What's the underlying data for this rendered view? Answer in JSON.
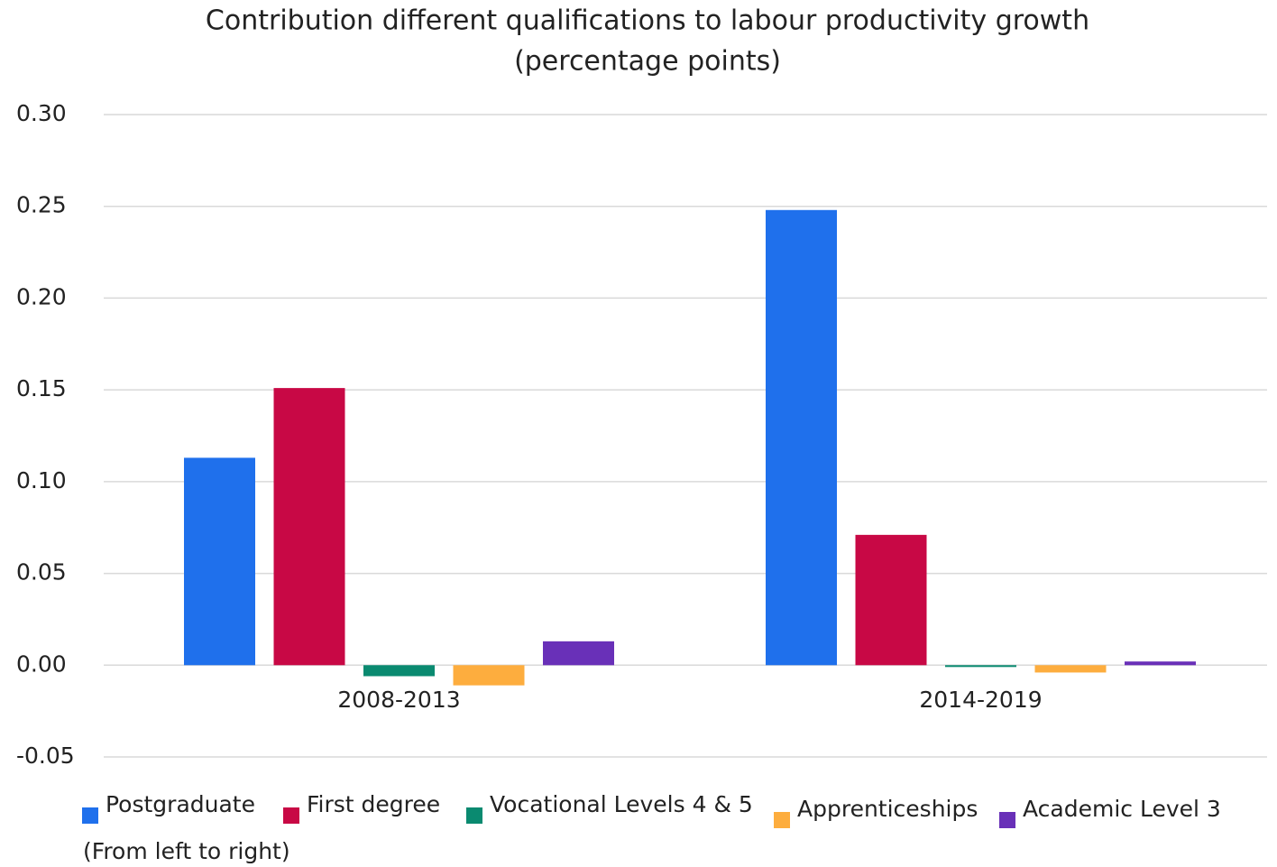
{
  "chart_data": {
    "type": "bar",
    "title": "Contribution different qualifications to labour productivity growth",
    "subtitle": "(percentage points)",
    "note": "(From left to right)",
    "categories": [
      "2008-2013",
      "2014-2019"
    ],
    "series": [
      {
        "name": "Postgraduate",
        "color": "#1f70ec",
        "values": [
          0.113,
          0.248
        ]
      },
      {
        "name": "First degree",
        "color": "#c80845",
        "values": [
          0.151,
          0.071
        ]
      },
      {
        "name": "Vocational Levels 4 & 5",
        "color": "#0a8a70",
        "values": [
          -0.006,
          -0.001
        ]
      },
      {
        "name": "Apprenticeships",
        "color": "#fdad3e",
        "values": [
          -0.011,
          -0.004
        ]
      },
      {
        "name": "Academic Level 3",
        "color": "#6930b8",
        "values": [
          0.013,
          0.002
        ]
      }
    ],
    "ylim": [
      -0.05,
      0.3
    ],
    "yticks": [
      {
        "value": -0.05,
        "label": "-0.05"
      },
      {
        "value": 0,
        "label": "0.00"
      },
      {
        "value": 0.05,
        "label": "0.05"
      },
      {
        "value": 0.1,
        "label": "0.10"
      },
      {
        "value": 0.15,
        "label": "0.15"
      },
      {
        "value": 0.2,
        "label": "0.20"
      },
      {
        "value": 0.25,
        "label": "0.25"
      },
      {
        "value": 0.3,
        "label": "0.30"
      }
    ],
    "grid": true,
    "legend": "bottom"
  }
}
